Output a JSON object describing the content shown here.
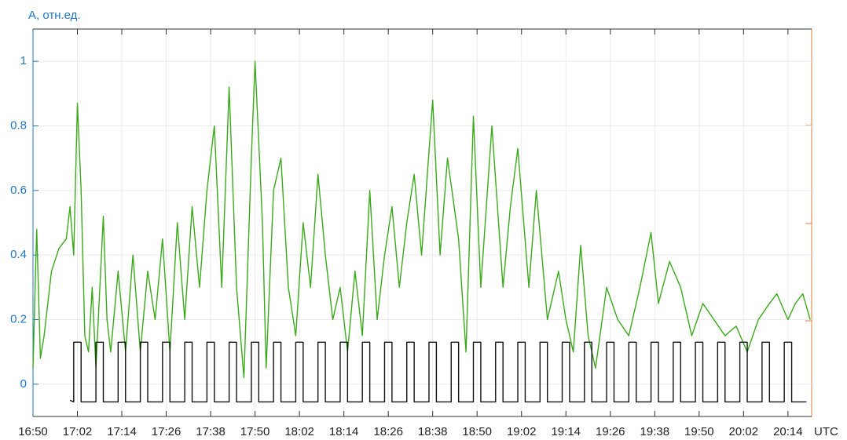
{
  "chart_data": {
    "type": "line",
    "y_label": "A, отн.ед.",
    "x_label": "UTC",
    "xlim": [
      1010,
      1220.4
    ],
    "ylim": [
      -0.1,
      1.1
    ],
    "xticks": [
      {
        "value": 1010,
        "label": "16:50"
      },
      {
        "value": 1022,
        "label": "17:02"
      },
      {
        "value": 1034,
        "label": "17:14"
      },
      {
        "value": 1046,
        "label": "17:26"
      },
      {
        "value": 1058,
        "label": "17:38"
      },
      {
        "value": 1070,
        "label": "17:50"
      },
      {
        "value": 1082,
        "label": "18:02"
      },
      {
        "value": 1094,
        "label": "18:14"
      },
      {
        "value": 1106,
        "label": "18:26"
      },
      {
        "value": 1118,
        "label": "18:38"
      },
      {
        "value": 1130,
        "label": "18:50"
      },
      {
        "value": 1142,
        "label": "19:02"
      },
      {
        "value": 1154,
        "label": "19:14"
      },
      {
        "value": 1166,
        "label": "19:26"
      },
      {
        "value": 1178,
        "label": "19:38"
      },
      {
        "value": 1190,
        "label": "19:50"
      },
      {
        "value": 1202,
        "label": "20:02"
      },
      {
        "value": 1214,
        "label": "20:14"
      }
    ],
    "yticks": [
      0,
      0.2,
      0.4,
      0.6,
      0.8,
      1
    ],
    "grid": true,
    "series": [
      {
        "color": "#3aaa1a",
        "x": [
          1010,
          1011,
          1012,
          1013,
          1015,
          1017,
          1019,
          1020,
          1021,
          1022,
          1023,
          1024,
          1025,
          1026,
          1027,
          1029,
          1030,
          1031,
          1033,
          1035,
          1037,
          1039,
          1041,
          1043,
          1045,
          1047,
          1049,
          1051,
          1053,
          1055,
          1057,
          1059,
          1061,
          1063,
          1065,
          1067,
          1069,
          1070,
          1072,
          1073,
          1075,
          1077,
          1079,
          1081,
          1083,
          1085,
          1087,
          1089,
          1091,
          1093,
          1095,
          1097,
          1099,
          1101,
          1103,
          1105,
          1107,
          1109,
          1111,
          1113,
          1115,
          1118,
          1120,
          1122,
          1125,
          1127,
          1129,
          1131,
          1134,
          1137,
          1139,
          1141,
          1144,
          1146,
          1149,
          1152,
          1154,
          1156,
          1158,
          1160,
          1162,
          1165,
          1168,
          1171,
          1174,
          1177,
          1179,
          1182,
          1185,
          1188,
          1191,
          1194,
          1197,
          1200,
          1203,
          1206,
          1209,
          1211,
          1214,
          1216,
          1218,
          1220
        ],
        "values": [
          0.05,
          0.48,
          0.08,
          0.15,
          0.35,
          0.42,
          0.45,
          0.55,
          0.4,
          0.87,
          0.6,
          0.15,
          0.1,
          0.3,
          0.05,
          0.52,
          0.2,
          0.1,
          0.35,
          0.1,
          0.4,
          0.1,
          0.35,
          0.2,
          0.45,
          0.1,
          0.5,
          0.2,
          0.55,
          0.3,
          0.6,
          0.8,
          0.3,
          0.92,
          0.3,
          0.02,
          0.7,
          1.0,
          0.5,
          0.05,
          0.6,
          0.7,
          0.3,
          0.15,
          0.5,
          0.3,
          0.65,
          0.4,
          0.2,
          0.3,
          0.1,
          0.35,
          0.15,
          0.6,
          0.2,
          0.4,
          0.55,
          0.3,
          0.5,
          0.65,
          0.4,
          0.88,
          0.4,
          0.7,
          0.45,
          0.1,
          0.83,
          0.3,
          0.8,
          0.3,
          0.55,
          0.73,
          0.3,
          0.6,
          0.2,
          0.35,
          0.2,
          0.1,
          0.43,
          0.15,
          0.05,
          0.3,
          0.2,
          0.15,
          0.3,
          0.47,
          0.25,
          0.38,
          0.3,
          0.15,
          0.25,
          0.2,
          0.15,
          0.18,
          0.1,
          0.2,
          0.25,
          0.28,
          0.2,
          0.25,
          0.28,
          0.2
        ]
      },
      {
        "color": "#111111",
        "x": [
          1020,
          1021,
          1021,
          1023,
          1023,
          1027,
          1027,
          1029,
          1029,
          1033,
          1033,
          1035,
          1035,
          1039,
          1039,
          1041,
          1041,
          1045,
          1045,
          1047,
          1047,
          1051,
          1051,
          1053,
          1053,
          1057,
          1057,
          1059,
          1059,
          1063,
          1063,
          1065,
          1065,
          1069,
          1069,
          1071,
          1071,
          1075,
          1075,
          1077,
          1077,
          1081,
          1081,
          1083,
          1083,
          1087,
          1087,
          1089,
          1089,
          1093,
          1093,
          1095,
          1095,
          1099,
          1099,
          1101,
          1101,
          1105,
          1105,
          1107,
          1107,
          1111,
          1111,
          1113,
          1113,
          1117,
          1117,
          1119,
          1119,
          1123,
          1123,
          1125,
          1125,
          1129,
          1129,
          1131,
          1131,
          1135,
          1135,
          1137,
          1137,
          1141,
          1141,
          1143,
          1143,
          1147,
          1147,
          1149,
          1149,
          1153,
          1153,
          1155,
          1155,
          1159,
          1159,
          1161,
          1161,
          1165,
          1165,
          1167,
          1167,
          1171,
          1171,
          1173,
          1173,
          1177,
          1177,
          1179,
          1179,
          1183,
          1183,
          1185,
          1185,
          1189,
          1189,
          1191,
          1191,
          1195,
          1195,
          1197,
          1197,
          1201,
          1201,
          1203,
          1203,
          1207,
          1207,
          1209,
          1209,
          1213,
          1213,
          1215,
          1215,
          1219
        ],
        "values": [
          -0.05,
          -0.055,
          0.13,
          0.13,
          -0.055,
          -0.055,
          0.13,
          0.13,
          -0.055,
          -0.055,
          0.13,
          0.13,
          -0.055,
          -0.055,
          0.13,
          0.13,
          -0.055,
          -0.055,
          0.13,
          0.13,
          -0.055,
          -0.055,
          0.13,
          0.13,
          -0.055,
          -0.055,
          0.13,
          0.13,
          -0.055,
          -0.055,
          0.13,
          0.13,
          -0.055,
          -0.055,
          0.13,
          0.13,
          -0.055,
          -0.055,
          0.13,
          0.13,
          -0.055,
          -0.055,
          0.13,
          0.13,
          -0.055,
          -0.055,
          0.13,
          0.13,
          -0.055,
          -0.055,
          0.13,
          0.13,
          -0.055,
          -0.055,
          0.13,
          0.13,
          -0.055,
          -0.055,
          0.13,
          0.13,
          -0.055,
          -0.055,
          0.13,
          0.13,
          -0.055,
          -0.055,
          0.13,
          0.13,
          -0.055,
          -0.055,
          0.13,
          0.13,
          -0.055,
          -0.055,
          0.13,
          0.13,
          -0.055,
          -0.055,
          0.13,
          0.13,
          -0.055,
          -0.055,
          0.13,
          0.13,
          -0.055,
          -0.055,
          0.13,
          0.13,
          -0.055,
          -0.055,
          0.13,
          0.13,
          -0.055,
          -0.055,
          0.13,
          0.13,
          -0.055,
          -0.055,
          0.13,
          0.13,
          -0.055,
          -0.055,
          0.13,
          0.13,
          -0.055,
          -0.055,
          0.13,
          0.13,
          -0.055,
          -0.055,
          0.13,
          0.13,
          -0.055,
          -0.055,
          0.13,
          0.13,
          -0.055,
          -0.055,
          0.13,
          0.13,
          -0.055,
          -0.055,
          0.13,
          0.13,
          -0.055,
          -0.055,
          0.13,
          0.13,
          -0.055,
          -0.055,
          0.13,
          0.13,
          -0.055,
          -0.055
        ]
      }
    ]
  }
}
